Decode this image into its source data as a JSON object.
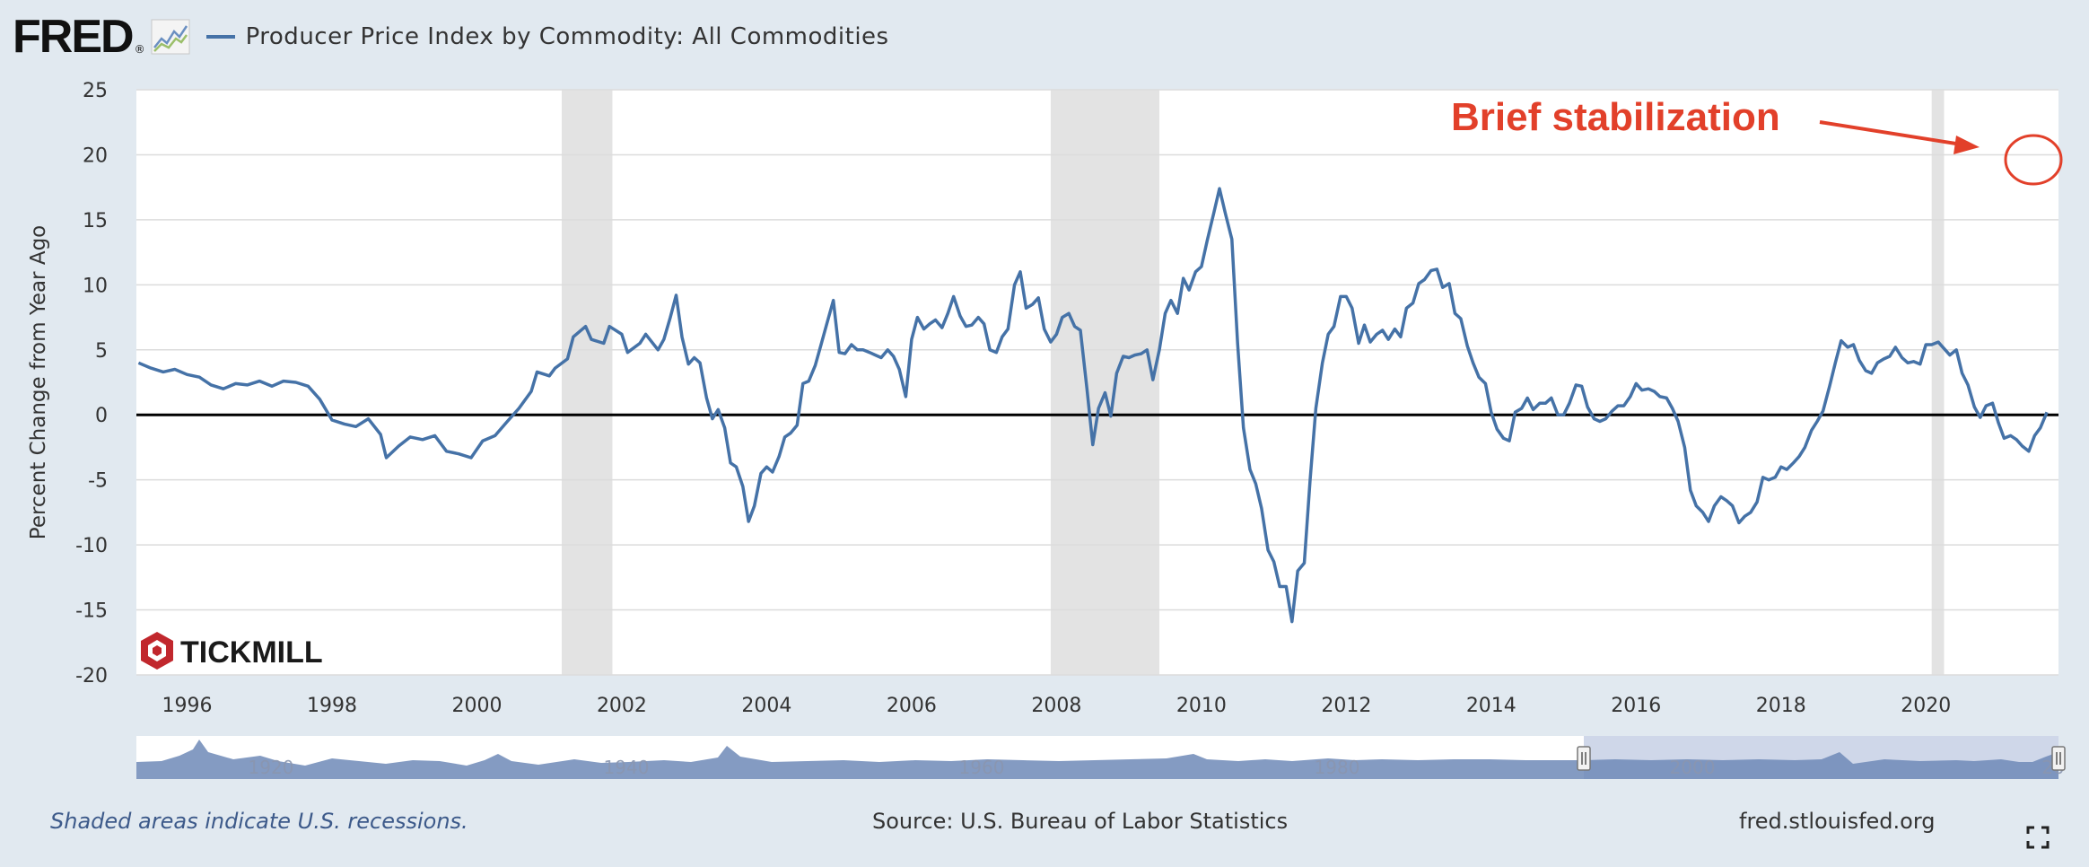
{
  "header": {
    "logo": "FRED",
    "logo_mark": "®",
    "series_title": "Producer Price Index by Commodity: All Commodities"
  },
  "colors": {
    "series": "#4572a7",
    "recession": "#e3e3e3",
    "annotation": "#e2402a",
    "page_bg": "#e1e9f0",
    "zero_line": "#000000"
  },
  "icons": [
    "graph-icon",
    "fullscreen-icon",
    "tickmill-logo-icon"
  ],
  "watermark": {
    "text": "TICKMILL"
  },
  "annotation": {
    "text": "Brief stabilization"
  },
  "footer": {
    "note": "Shaded areas indicate U.S. recessions.",
    "source": "Source: U.S. Bureau of Labor Statistics",
    "site": "fred.stlouisfed.org"
  },
  "chart_data": {
    "type": "line",
    "title": "Producer Price Index by Commodity: All Commodities",
    "ylabel": "Percent Change from Year Ago",
    "xlabel": "",
    "ylim": [
      -20,
      25
    ],
    "xlim": [
      1995.3,
      2021.83
    ],
    "grid": true,
    "legend": "top-left",
    "y_ticks": [
      25,
      20,
      15,
      10,
      5,
      0,
      -5,
      -10,
      -15,
      -20
    ],
    "x_ticks": [
      "1996",
      "1998",
      "2000",
      "2002",
      "2004",
      "2006",
      "2008",
      "2010",
      "2012",
      "2014",
      "2016",
      "2018",
      "2020"
    ],
    "recessions": [
      [
        2001.17,
        2001.87
      ],
      [
        2007.92,
        2009.42
      ],
      [
        2020.08,
        2020.25
      ]
    ],
    "series": [
      {
        "name": "Producer Price Index by Commodity: All Commodities",
        "points": [
          [
            1995.33,
            4.0
          ],
          [
            1995.5,
            3.6
          ],
          [
            1995.67,
            3.3
          ],
          [
            1995.83,
            3.5
          ],
          [
            1996.0,
            3.1
          ],
          [
            1996.17,
            2.9
          ],
          [
            1996.33,
            2.3
          ],
          [
            1996.5,
            2.0
          ],
          [
            1996.67,
            2.4
          ],
          [
            1996.83,
            2.3
          ],
          [
            1997.0,
            2.6
          ],
          [
            1997.17,
            2.2
          ],
          [
            1997.33,
            2.6
          ],
          [
            1997.5,
            2.5
          ],
          [
            1997.67,
            2.2
          ],
          [
            1997.83,
            1.2
          ],
          [
            1998.0,
            -0.4
          ],
          [
            1998.17,
            -0.7
          ],
          [
            1998.33,
            -0.9
          ],
          [
            1998.5,
            -0.3
          ],
          [
            1998.67,
            -1.5
          ],
          [
            1998.75,
            -3.3
          ],
          [
            1998.92,
            -2.4
          ],
          [
            1999.08,
            -1.7
          ],
          [
            1999.25,
            -1.9
          ],
          [
            1999.42,
            -1.6
          ],
          [
            1999.58,
            -2.8
          ],
          [
            1999.75,
            -3.0
          ],
          [
            1999.92,
            -3.3
          ],
          [
            2000.08,
            -2.0
          ],
          [
            2000.25,
            -1.6
          ],
          [
            2000.42,
            -0.5
          ],
          [
            2000.58,
            0.5
          ],
          [
            2000.75,
            1.8
          ],
          [
            2000.83,
            3.3
          ],
          [
            2001.0,
            3.0
          ],
          [
            2001.08,
            3.6
          ],
          [
            2001.25,
            4.3
          ],
          [
            2001.33,
            6.0
          ],
          [
            2001.5,
            6.8
          ],
          [
            2001.58,
            5.8
          ],
          [
            2001.75,
            5.5
          ],
          [
            2001.83,
            6.8
          ],
          [
            2002.0,
            6.2
          ],
          [
            2002.08,
            4.8
          ],
          [
            2002.25,
            5.5
          ],
          [
            2002.33,
            6.2
          ],
          [
            2002.5,
            5.0
          ],
          [
            2002.58,
            5.8
          ],
          [
            2002.67,
            7.5
          ],
          [
            2002.75,
            9.2
          ],
          [
            2002.83,
            6.0
          ],
          [
            2002.92,
            3.9
          ],
          [
            2003.0,
            4.4
          ],
          [
            2003.08,
            4.0
          ],
          [
            2003.17,
            1.3
          ],
          [
            2003.25,
            -0.3
          ],
          [
            2003.33,
            0.4
          ],
          [
            2003.42,
            -1.0
          ],
          [
            2003.5,
            -3.7
          ],
          [
            2003.58,
            -4.0
          ],
          [
            2003.67,
            -5.5
          ],
          [
            2003.75,
            -8.2
          ],
          [
            2003.83,
            -7.0
          ],
          [
            2003.92,
            -4.5
          ],
          [
            2004.0,
            -4.0
          ],
          [
            2004.08,
            -4.4
          ],
          [
            2004.17,
            -3.2
          ],
          [
            2004.25,
            -1.7
          ],
          [
            2004.33,
            -1.4
          ],
          [
            2004.42,
            -0.8
          ],
          [
            2004.5,
            2.4
          ],
          [
            2004.58,
            2.6
          ],
          [
            2004.67,
            3.8
          ],
          [
            2004.75,
            5.4
          ],
          [
            2004.83,
            7.0
          ],
          [
            2004.92,
            8.8
          ],
          [
            2005.0,
            4.8
          ],
          [
            2005.08,
            4.7
          ],
          [
            2005.17,
            5.4
          ],
          [
            2005.25,
            5.0
          ],
          [
            2005.33,
            5.0
          ],
          [
            2005.42,
            4.8
          ],
          [
            2005.5,
            4.6
          ],
          [
            2005.58,
            4.4
          ],
          [
            2005.67,
            5.0
          ],
          [
            2005.75,
            4.5
          ],
          [
            2005.83,
            3.5
          ],
          [
            2005.92,
            1.4
          ],
          [
            2006.0,
            5.8
          ],
          [
            2006.08,
            7.5
          ],
          [
            2006.17,
            6.6
          ],
          [
            2006.25,
            7.0
          ],
          [
            2006.33,
            7.3
          ],
          [
            2006.42,
            6.7
          ],
          [
            2006.5,
            7.8
          ],
          [
            2006.58,
            9.1
          ],
          [
            2006.67,
            7.6
          ],
          [
            2006.75,
            6.8
          ],
          [
            2006.83,
            6.9
          ],
          [
            2006.92,
            7.5
          ],
          [
            2007.0,
            7.0
          ],
          [
            2007.08,
            5.0
          ],
          [
            2007.17,
            4.8
          ],
          [
            2007.25,
            6.0
          ],
          [
            2007.33,
            6.6
          ],
          [
            2007.42,
            10.0
          ],
          [
            2007.5,
            11.0
          ],
          [
            2007.58,
            8.2
          ],
          [
            2007.67,
            8.5
          ],
          [
            2007.75,
            9.0
          ],
          [
            2007.83,
            6.6
          ],
          [
            2007.92,
            5.6
          ],
          [
            2008.0,
            6.2
          ],
          [
            2008.08,
            7.5
          ],
          [
            2008.17,
            7.8
          ],
          [
            2008.25,
            6.8
          ],
          [
            2008.33,
            6.5
          ],
          [
            2008.42,
            2.0
          ],
          [
            2008.5,
            -2.3
          ],
          [
            2008.58,
            0.5
          ],
          [
            2008.67,
            1.7
          ],
          [
            2008.75,
            -0.1
          ],
          [
            2008.83,
            3.2
          ],
          [
            2008.92,
            4.5
          ],
          [
            2009.0,
            4.4
          ],
          [
            2009.08,
            4.6
          ],
          [
            2009.17,
            4.7
          ],
          [
            2009.25,
            5.0
          ],
          [
            2009.33,
            2.7
          ],
          [
            2009.42,
            5.0
          ],
          [
            2009.5,
            7.8
          ],
          [
            2009.58,
            8.8
          ],
          [
            2009.67,
            7.8
          ],
          [
            2009.75,
            10.5
          ],
          [
            2009.83,
            9.6
          ],
          [
            2009.92,
            11.0
          ],
          [
            2010.0,
            11.4
          ],
          [
            2010.08,
            13.4
          ],
          [
            2010.17,
            15.5
          ],
          [
            2010.25,
            17.4
          ],
          [
            2010.33,
            15.5
          ],
          [
            2010.42,
            13.5
          ],
          [
            2010.5,
            5.5
          ],
          [
            2010.58,
            -1.0
          ],
          [
            2010.67,
            -4.2
          ],
          [
            2010.75,
            -5.3
          ],
          [
            2010.83,
            -7.2
          ],
          [
            2010.92,
            -10.4
          ],
          [
            2011.0,
            -11.3
          ],
          [
            2011.08,
            -13.2
          ],
          [
            2011.17,
            -13.2
          ],
          [
            2011.25,
            -15.9
          ],
          [
            2011.33,
            -12.0
          ],
          [
            2011.42,
            -11.4
          ],
          [
            2011.5,
            -5.0
          ],
          [
            2011.58,
            0.5
          ],
          [
            2011.67,
            4.0
          ],
          [
            2011.75,
            6.2
          ],
          [
            2011.83,
            6.8
          ],
          [
            2011.92,
            9.1
          ],
          [
            2012.0,
            9.1
          ],
          [
            2012.08,
            8.2
          ],
          [
            2012.17,
            5.5
          ],
          [
            2012.25,
            6.9
          ],
          [
            2012.33,
            5.6
          ],
          [
            2012.42,
            6.2
          ],
          [
            2012.5,
            6.5
          ],
          [
            2012.58,
            5.8
          ],
          [
            2012.67,
            6.6
          ],
          [
            2012.75,
            6.0
          ],
          [
            2012.83,
            8.2
          ],
          [
            2012.92,
            8.6
          ],
          [
            2013.0,
            10.1
          ],
          [
            2013.08,
            10.4
          ],
          [
            2013.17,
            11.1
          ],
          [
            2013.25,
            11.2
          ],
          [
            2013.33,
            9.8
          ],
          [
            2013.42,
            10.1
          ],
          [
            2013.5,
            7.8
          ],
          [
            2013.58,
            7.4
          ],
          [
            2013.67,
            5.3
          ],
          [
            2013.75,
            4.0
          ],
          [
            2013.83,
            2.9
          ],
          [
            2013.92,
            2.4
          ],
          [
            2014.0,
            0.2
          ],
          [
            2014.08,
            -1.1
          ],
          [
            2014.17,
            -1.8
          ],
          [
            2014.25,
            -2.0
          ],
          [
            2014.33,
            0.2
          ],
          [
            2014.42,
            0.5
          ],
          [
            2014.5,
            1.3
          ],
          [
            2014.58,
            0.4
          ],
          [
            2014.67,
            0.9
          ],
          [
            2014.75,
            0.9
          ],
          [
            2014.83,
            1.3
          ],
          [
            2014.92,
            0.0
          ],
          [
            2015.0,
            0.0
          ],
          [
            2015.08,
            0.9
          ],
          [
            2015.17,
            2.3
          ],
          [
            2015.25,
            2.2
          ],
          [
            2015.33,
            0.6
          ],
          [
            2015.42,
            -0.3
          ],
          [
            2015.5,
            -0.5
          ],
          [
            2015.58,
            -0.3
          ],
          [
            2015.67,
            0.3
          ],
          [
            2015.75,
            0.7
          ],
          [
            2015.83,
            0.7
          ],
          [
            2015.92,
            1.4
          ],
          [
            2016.0,
            2.4
          ],
          [
            2016.08,
            1.9
          ],
          [
            2016.17,
            2.0
          ],
          [
            2016.25,
            1.8
          ],
          [
            2016.33,
            1.4
          ],
          [
            2016.42,
            1.3
          ],
          [
            2016.5,
            0.5
          ],
          [
            2016.58,
            -0.5
          ],
          [
            2016.67,
            -2.5
          ],
          [
            2016.75,
            -5.8
          ],
          [
            2016.83,
            -7.0
          ],
          [
            2016.92,
            -7.5
          ],
          [
            2017.0,
            -8.2
          ],
          [
            2017.08,
            -7.0
          ],
          [
            2017.17,
            -6.3
          ],
          [
            2017.25,
            -6.6
          ],
          [
            2017.33,
            -7.0
          ],
          [
            2017.42,
            -8.3
          ],
          [
            2017.5,
            -7.8
          ],
          [
            2017.58,
            -7.5
          ],
          [
            2017.67,
            -6.7
          ],
          [
            2017.75,
            -4.8
          ],
          [
            2017.83,
            -5.0
          ],
          [
            2017.92,
            -4.8
          ],
          [
            2018.0,
            -4.0
          ],
          [
            2018.08,
            -4.2
          ],
          [
            2018.17,
            -3.7
          ],
          [
            2018.25,
            -3.2
          ],
          [
            2018.33,
            -2.5
          ],
          [
            2018.42,
            -1.2
          ],
          [
            2018.5,
            -0.5
          ],
          [
            2018.58,
            0.3
          ],
          [
            2018.67,
            2.2
          ],
          [
            2018.75,
            4.0
          ],
          [
            2018.83,
            5.7
          ],
          [
            2018.92,
            5.2
          ],
          [
            2019.0,
            5.4
          ],
          [
            2019.08,
            4.2
          ],
          [
            2019.17,
            3.4
          ],
          [
            2019.25,
            3.2
          ],
          [
            2019.33,
            4.0
          ],
          [
            2019.42,
            4.3
          ],
          [
            2019.5,
            4.5
          ],
          [
            2019.58,
            5.2
          ],
          [
            2019.67,
            4.4
          ],
          [
            2019.75,
            4.0
          ],
          [
            2019.83,
            4.1
          ],
          [
            2019.92,
            3.9
          ],
          [
            2020.0,
            5.4
          ],
          [
            2020.08,
            5.4
          ],
          [
            2020.17,
            5.6
          ],
          [
            2020.25,
            5.1
          ],
          [
            2020.33,
            4.6
          ],
          [
            2020.42,
            5.0
          ],
          [
            2020.5,
            3.2
          ],
          [
            2020.58,
            2.3
          ],
          [
            2020.67,
            0.6
          ],
          [
            2020.75,
            -0.2
          ],
          [
            2020.83,
            0.7
          ],
          [
            2020.92,
            0.9
          ],
          [
            2021.0,
            -0.6
          ],
          [
            2021.08,
            -1.8
          ],
          [
            2021.17,
            -1.6
          ],
          [
            2021.25,
            -1.9
          ],
          [
            2021.33,
            -2.4
          ],
          [
            2021.42,
            -2.8
          ],
          [
            2021.5,
            -1.6
          ],
          [
            2021.58,
            -1.0
          ],
          [
            2021.67,
            0.2
          ]
        ]
      }
    ],
    "_note": ""
  },
  "navigator": {
    "x_ticks": [
      "1920",
      "1940",
      "1960",
      "1980",
      "2000",
      "20"
    ]
  }
}
